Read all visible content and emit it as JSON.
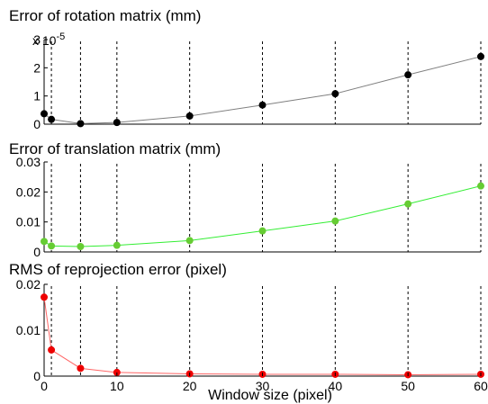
{
  "chart_data": [
    {
      "type": "line",
      "title": "Error of rotation matrix (mm)",
      "y_multiplier_label": "x 10",
      "y_multiplier_exponent": "-5",
      "x": [
        0,
        1,
        5,
        10,
        20,
        30,
        40,
        50,
        60
      ],
      "series": [
        {
          "values": [
            0.37,
            0.17,
            0.02,
            0.06,
            0.29,
            0.68,
            1.08,
            1.75,
            2.4
          ],
          "color": "#000000",
          "line_color": "#808080"
        }
      ],
      "ylim": [
        0,
        3
      ],
      "yticks": [
        0,
        1,
        2,
        3
      ],
      "ytick_labels": [
        "0",
        "1",
        "2",
        "3"
      ],
      "grid": "vertical dashed"
    },
    {
      "type": "line",
      "title": "Error of translation matrix (mm)",
      "x": [
        0,
        1,
        5,
        10,
        20,
        30,
        40,
        50,
        60
      ],
      "series": [
        {
          "values": [
            0.0035,
            0.002,
            0.0018,
            0.0022,
            0.0038,
            0.007,
            0.0103,
            0.016,
            0.022
          ],
          "color": "#66cc33",
          "line_color": "#33ee33"
        }
      ],
      "ylim": [
        0,
        0.03
      ],
      "yticks": [
        0,
        0.01,
        0.02,
        0.03
      ],
      "ytick_labels": [
        "0",
        "0.01",
        "0.02",
        "0.03"
      ],
      "grid": "vertical dashed"
    },
    {
      "type": "line",
      "title": "RMS of reprojection error (pixel)",
      "xlabel": "Window size (pixel)",
      "x": [
        0,
        1,
        5,
        10,
        20,
        30,
        40,
        50,
        60
      ],
      "series": [
        {
          "values": [
            0.0172,
            0.0057,
            0.0017,
            0.0008,
            0.0005,
            0.0004,
            0.0004,
            0.0003,
            0.0004
          ],
          "color": "#ee0000",
          "line_color": "#ff6666"
        }
      ],
      "ylim": [
        0,
        0.02
      ],
      "yticks": [
        0,
        0.01,
        0.02
      ],
      "ytick_labels": [
        "0",
        "0.01",
        "0.02"
      ],
      "xticks": [
        0,
        10,
        20,
        30,
        40,
        50,
        60
      ],
      "xtick_labels": [
        "0",
        "10",
        "20",
        "30",
        "40",
        "50",
        "60"
      ],
      "grid": "vertical dashed"
    }
  ]
}
